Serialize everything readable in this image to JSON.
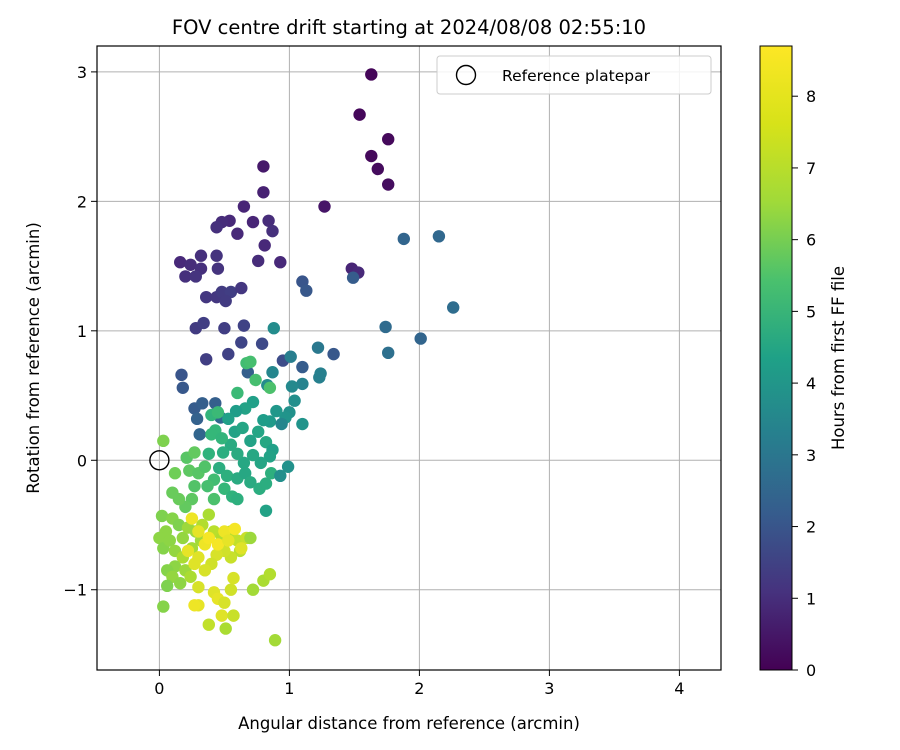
{
  "chart_data": {
    "type": "scatter",
    "title": "FOV centre drift starting at 2024/08/08 02:55:10",
    "xlabel": "Angular distance from reference (arcmin)",
    "ylabel": "Rotation from reference (arcmin)",
    "xlim": [
      -0.48,
      4.32
    ],
    "ylim": [
      -1.62,
      3.2
    ],
    "xticks": [
      0,
      1,
      2,
      3,
      4
    ],
    "yticks": [
      -1,
      0,
      1,
      2,
      3
    ],
    "grid": true,
    "legend": {
      "placement": "top-right",
      "entries": [
        "Reference platepar"
      ]
    },
    "reference_point": {
      "x": 0,
      "y": 0,
      "name": "Reference platepar"
    },
    "colorbar": {
      "label": "Hours from first FF file",
      "range": [
        0,
        8.7
      ],
      "ticks": [
        0,
        1,
        2,
        3,
        4,
        5,
        6,
        7,
        8
      ],
      "colormap": "viridis"
    },
    "points": [
      {
        "x": 1.63,
        "y": 2.98,
        "c": 0.1
      },
      {
        "x": 1.54,
        "y": 2.67,
        "c": 0.15
      },
      {
        "x": 1.76,
        "y": 2.48,
        "c": 0.2
      },
      {
        "x": 1.63,
        "y": 2.35,
        "c": 0.2
      },
      {
        "x": 1.68,
        "y": 2.25,
        "c": 0.25
      },
      {
        "x": 1.76,
        "y": 2.13,
        "c": 0.3
      },
      {
        "x": 1.27,
        "y": 1.96,
        "c": 0.5
      },
      {
        "x": 0.8,
        "y": 2.27,
        "c": 0.6
      },
      {
        "x": 0.8,
        "y": 2.07,
        "c": 0.8
      },
      {
        "x": 0.65,
        "y": 1.96,
        "c": 0.9
      },
      {
        "x": 0.54,
        "y": 1.85,
        "c": 1.0
      },
      {
        "x": 0.48,
        "y": 1.84,
        "c": 1.1
      },
      {
        "x": 0.44,
        "y": 1.8,
        "c": 1.2
      },
      {
        "x": 0.6,
        "y": 1.75,
        "c": 1.0
      },
      {
        "x": 0.72,
        "y": 1.84,
        "c": 0.9
      },
      {
        "x": 0.84,
        "y": 1.85,
        "c": 1.1
      },
      {
        "x": 0.87,
        "y": 1.77,
        "c": 1.2
      },
      {
        "x": 0.81,
        "y": 1.66,
        "c": 1.0
      },
      {
        "x": 0.76,
        "y": 1.54,
        "c": 1.1
      },
      {
        "x": 0.93,
        "y": 1.53,
        "c": 1.0
      },
      {
        "x": 0.16,
        "y": 1.53,
        "c": 1.0
      },
      {
        "x": 0.24,
        "y": 1.51,
        "c": 1.1
      },
      {
        "x": 0.32,
        "y": 1.48,
        "c": 1.2
      },
      {
        "x": 0.32,
        "y": 1.58,
        "c": 1.2
      },
      {
        "x": 0.44,
        "y": 1.58,
        "c": 1.3
      },
      {
        "x": 0.45,
        "y": 1.48,
        "c": 1.3
      },
      {
        "x": 0.2,
        "y": 1.42,
        "c": 1.2
      },
      {
        "x": 0.28,
        "y": 1.42,
        "c": 1.3
      },
      {
        "x": 0.36,
        "y": 1.26,
        "c": 1.4
      },
      {
        "x": 0.44,
        "y": 1.26,
        "c": 1.4
      },
      {
        "x": 0.48,
        "y": 1.3,
        "c": 1.5
      },
      {
        "x": 0.55,
        "y": 1.3,
        "c": 1.6
      },
      {
        "x": 0.51,
        "y": 1.23,
        "c": 1.5
      },
      {
        "x": 0.63,
        "y": 1.33,
        "c": 1.4
      },
      {
        "x": 1.48,
        "y": 1.48,
        "c": 0.9
      },
      {
        "x": 1.53,
        "y": 1.45,
        "c": 1.0
      },
      {
        "x": 0.28,
        "y": 1.02,
        "c": 1.5
      },
      {
        "x": 0.34,
        "y": 1.06,
        "c": 1.6
      },
      {
        "x": 0.5,
        "y": 1.02,
        "c": 1.6
      },
      {
        "x": 0.65,
        "y": 1.04,
        "c": 1.7
      },
      {
        "x": 0.36,
        "y": 0.78,
        "c": 1.6
      },
      {
        "x": 0.53,
        "y": 0.82,
        "c": 1.7
      },
      {
        "x": 0.63,
        "y": 0.91,
        "c": 1.8
      },
      {
        "x": 0.79,
        "y": 0.9,
        "c": 1.9
      },
      {
        "x": 0.95,
        "y": 0.77,
        "c": 2.0
      },
      {
        "x": 1.1,
        "y": 1.38,
        "c": 2.3
      },
      {
        "x": 1.13,
        "y": 1.31,
        "c": 2.4
      },
      {
        "x": 1.49,
        "y": 1.41,
        "c": 2.5
      },
      {
        "x": 1.34,
        "y": 0.82,
        "c": 2.4
      },
      {
        "x": 1.1,
        "y": 0.72,
        "c": 2.5
      },
      {
        "x": 0.68,
        "y": 0.68,
        "c": 2.6
      },
      {
        "x": 1.88,
        "y": 1.71,
        "c": 2.8
      },
      {
        "x": 2.15,
        "y": 1.73,
        "c": 2.9
      },
      {
        "x": 2.26,
        "y": 1.18,
        "c": 3.1
      },
      {
        "x": 2.01,
        "y": 0.94,
        "c": 2.8
      },
      {
        "x": 1.74,
        "y": 1.03,
        "c": 3.0
      },
      {
        "x": 1.76,
        "y": 0.83,
        "c": 3.2
      },
      {
        "x": 0.17,
        "y": 0.66,
        "c": 2.3
      },
      {
        "x": 0.18,
        "y": 0.56,
        "c": 2.4
      },
      {
        "x": 0.27,
        "y": 0.4,
        "c": 2.5
      },
      {
        "x": 0.33,
        "y": 0.44,
        "c": 2.6
      },
      {
        "x": 0.29,
        "y": 0.32,
        "c": 2.7
      },
      {
        "x": 0.31,
        "y": 0.2,
        "c": 2.8
      },
      {
        "x": 0.43,
        "y": 0.44,
        "c": 2.6
      },
      {
        "x": 0.47,
        "y": 0.33,
        "c": 2.9
      },
      {
        "x": 1.22,
        "y": 0.87,
        "c": 3.5
      },
      {
        "x": 1.01,
        "y": 0.8,
        "c": 3.7
      },
      {
        "x": 1.24,
        "y": 0.67,
        "c": 3.8
      },
      {
        "x": 1.23,
        "y": 0.64,
        "c": 3.8
      },
      {
        "x": 1.1,
        "y": 0.59,
        "c": 3.9
      },
      {
        "x": 1.02,
        "y": 0.57,
        "c": 4.1
      },
      {
        "x": 0.87,
        "y": 0.68,
        "c": 4.0
      },
      {
        "x": 0.88,
        "y": 1.02,
        "c": 4.2
      },
      {
        "x": 0.83,
        "y": 0.58,
        "c": 4.2
      },
      {
        "x": 1.04,
        "y": 0.46,
        "c": 4.3
      },
      {
        "x": 1.0,
        "y": 0.37,
        "c": 4.4
      },
      {
        "x": 0.97,
        "y": 0.33,
        "c": 4.5
      },
      {
        "x": 0.9,
        "y": 0.38,
        "c": 4.6
      },
      {
        "x": 0.85,
        "y": 0.3,
        "c": 4.7
      },
      {
        "x": 0.8,
        "y": 0.31,
        "c": 4.8
      },
      {
        "x": 0.72,
        "y": 0.45,
        "c": 4.9
      },
      {
        "x": 0.66,
        "y": 0.4,
        "c": 5.0
      },
      {
        "x": 0.59,
        "y": 0.38,
        "c": 4.8
      },
      {
        "x": 0.53,
        "y": 0.32,
        "c": 4.9
      },
      {
        "x": 0.58,
        "y": 0.22,
        "c": 5.0
      },
      {
        "x": 0.64,
        "y": 0.25,
        "c": 5.1
      },
      {
        "x": 0.7,
        "y": 0.15,
        "c": 5.0
      },
      {
        "x": 0.76,
        "y": 0.22,
        "c": 5.1
      },
      {
        "x": 0.82,
        "y": 0.14,
        "c": 5.2
      },
      {
        "x": 0.87,
        "y": 0.08,
        "c": 4.9
      },
      {
        "x": 0.85,
        "y": 0.03,
        "c": 5.0
      },
      {
        "x": 0.78,
        "y": -0.02,
        "c": 5.1
      },
      {
        "x": 0.72,
        "y": 0.04,
        "c": 5.2
      },
      {
        "x": 0.65,
        "y": -0.02,
        "c": 5.2
      },
      {
        "x": 0.6,
        "y": 0.05,
        "c": 5.3
      },
      {
        "x": 0.55,
        "y": 0.12,
        "c": 5.3
      },
      {
        "x": 0.49,
        "y": 0.06,
        "c": 5.4
      },
      {
        "x": 0.46,
        "y": -0.06,
        "c": 5.4
      },
      {
        "x": 0.52,
        "y": -0.12,
        "c": 5.5
      },
      {
        "x": 0.6,
        "y": -0.14,
        "c": 5.3
      },
      {
        "x": 0.66,
        "y": -0.1,
        "c": 5.2
      },
      {
        "x": 0.7,
        "y": -0.17,
        "c": 5.3
      },
      {
        "x": 0.77,
        "y": -0.22,
        "c": 5.4
      },
      {
        "x": 0.82,
        "y": -0.18,
        "c": 5.4
      },
      {
        "x": 0.86,
        "y": -0.1,
        "c": 5.5
      },
      {
        "x": 0.93,
        "y": -0.12,
        "c": 4.3
      },
      {
        "x": 0.99,
        "y": -0.05,
        "c": 4.4
      },
      {
        "x": 0.82,
        "y": -0.39,
        "c": 5.0
      },
      {
        "x": 0.94,
        "y": 0.28,
        "c": 4.0
      },
      {
        "x": 1.1,
        "y": 0.28,
        "c": 4.5
      },
      {
        "x": 0.38,
        "y": 0.05,
        "c": 5.6
      },
      {
        "x": 0.4,
        "y": 0.35,
        "c": 5.7
      },
      {
        "x": 0.43,
        "y": 0.23,
        "c": 5.8
      },
      {
        "x": 0.45,
        "y": 0.37,
        "c": 5.9
      },
      {
        "x": 0.6,
        "y": 0.52,
        "c": 5.9
      },
      {
        "x": 0.67,
        "y": 0.75,
        "c": 6.0
      },
      {
        "x": 0.7,
        "y": 0.76,
        "c": 6.1
      },
      {
        "x": 0.74,
        "y": 0.62,
        "c": 6.1
      },
      {
        "x": 0.85,
        "y": 0.56,
        "c": 6.2
      },
      {
        "x": 0.4,
        "y": 0.2,
        "c": 5.8
      },
      {
        "x": 0.48,
        "y": 0.17,
        "c": 5.7
      },
      {
        "x": 0.5,
        "y": -0.22,
        "c": 5.8
      },
      {
        "x": 0.56,
        "y": -0.28,
        "c": 5.6
      },
      {
        "x": 0.6,
        "y": -0.3,
        "c": 5.5
      },
      {
        "x": 0.42,
        "y": -0.15,
        "c": 6.0
      },
      {
        "x": 0.37,
        "y": -0.2,
        "c": 6.1
      },
      {
        "x": 0.42,
        "y": -0.3,
        "c": 6.2
      },
      {
        "x": 0.27,
        "y": -0.2,
        "c": 6.3
      },
      {
        "x": 0.21,
        "y": 0.02,
        "c": 6.4
      },
      {
        "x": 0.23,
        "y": -0.08,
        "c": 6.5
      },
      {
        "x": 0.27,
        "y": 0.06,
        "c": 6.6
      },
      {
        "x": 0.3,
        "y": -0.1,
        "c": 6.4
      },
      {
        "x": 0.35,
        "y": -0.05,
        "c": 6.3
      },
      {
        "x": 0.25,
        "y": -0.3,
        "c": 6.5
      },
      {
        "x": 0.2,
        "y": -0.36,
        "c": 6.6
      },
      {
        "x": 0.15,
        "y": -0.3,
        "c": 6.7
      },
      {
        "x": 0.12,
        "y": -0.1,
        "c": 6.8
      },
      {
        "x": 0.1,
        "y": -0.25,
        "c": 6.7
      },
      {
        "x": 0.03,
        "y": 0.15,
        "c": 7.0
      },
      {
        "x": 0.02,
        "y": -0.43,
        "c": 7.0
      },
      {
        "x": 0.1,
        "y": -0.45,
        "c": 7.1
      },
      {
        "x": 0.15,
        "y": -0.5,
        "c": 7.0
      },
      {
        "x": 0.05,
        "y": -0.55,
        "c": 7.2
      },
      {
        "x": 0.0,
        "y": -0.6,
        "c": 7.2
      },
      {
        "x": 0.03,
        "y": -0.68,
        "c": 7.1
      },
      {
        "x": 0.08,
        "y": -0.62,
        "c": 7.2
      },
      {
        "x": 0.12,
        "y": -0.7,
        "c": 7.3
      },
      {
        "x": 0.18,
        "y": -0.6,
        "c": 7.3
      },
      {
        "x": 0.22,
        "y": -0.52,
        "c": 7.4
      },
      {
        "x": 0.28,
        "y": -0.55,
        "c": 7.4
      },
      {
        "x": 0.32,
        "y": -0.62,
        "c": 7.5
      },
      {
        "x": 0.25,
        "y": -0.68,
        "c": 7.5
      },
      {
        "x": 0.18,
        "y": -0.75,
        "c": 7.6
      },
      {
        "x": 0.12,
        "y": -0.82,
        "c": 7.2
      },
      {
        "x": 0.06,
        "y": -0.85,
        "c": 7.1
      },
      {
        "x": 0.1,
        "y": -0.9,
        "c": 7.3
      },
      {
        "x": 0.16,
        "y": -0.95,
        "c": 7.2
      },
      {
        "x": 0.06,
        "y": -0.97,
        "c": 7.0
      },
      {
        "x": 0.03,
        "y": -1.13,
        "c": 7.1
      },
      {
        "x": 0.2,
        "y": -0.85,
        "c": 7.4
      },
      {
        "x": 0.24,
        "y": -0.9,
        "c": 7.6
      },
      {
        "x": 0.33,
        "y": -0.5,
        "c": 7.7
      },
      {
        "x": 0.38,
        "y": -0.42,
        "c": 7.6
      },
      {
        "x": 0.42,
        "y": -0.55,
        "c": 7.8
      },
      {
        "x": 0.48,
        "y": -0.6,
        "c": 7.7
      },
      {
        "x": 0.55,
        "y": -0.55,
        "c": 7.8
      },
      {
        "x": 0.6,
        "y": -0.62,
        "c": 7.9
      },
      {
        "x": 0.67,
        "y": -0.6,
        "c": 8.0
      },
      {
        "x": 0.62,
        "y": -0.7,
        "c": 7.8
      },
      {
        "x": 0.55,
        "y": -0.75,
        "c": 8.0
      },
      {
        "x": 0.5,
        "y": -0.7,
        "c": 8.1
      },
      {
        "x": 0.44,
        "y": -0.73,
        "c": 8.2
      },
      {
        "x": 0.4,
        "y": -0.8,
        "c": 8.1
      },
      {
        "x": 0.35,
        "y": -0.85,
        "c": 8.2
      },
      {
        "x": 0.3,
        "y": -0.75,
        "c": 8.3
      },
      {
        "x": 0.27,
        "y": -0.8,
        "c": 8.3
      },
      {
        "x": 0.22,
        "y": -0.7,
        "c": 8.4
      },
      {
        "x": 0.25,
        "y": -0.45,
        "c": 8.5
      },
      {
        "x": 0.3,
        "y": -0.55,
        "c": 8.4
      },
      {
        "x": 0.35,
        "y": -0.65,
        "c": 8.5
      },
      {
        "x": 0.38,
        "y": -0.6,
        "c": 8.6
      },
      {
        "x": 0.45,
        "y": -0.65,
        "c": 8.6
      },
      {
        "x": 0.5,
        "y": -0.55,
        "c": 8.5
      },
      {
        "x": 0.53,
        "y": -0.62,
        "c": 8.4
      },
      {
        "x": 0.58,
        "y": -0.53,
        "c": 8.6
      },
      {
        "x": 0.63,
        "y": -0.68,
        "c": 8.3
      },
      {
        "x": 0.7,
        "y": -0.6,
        "c": 7.4
      },
      {
        "x": 0.3,
        "y": -0.98,
        "c": 8.2
      },
      {
        "x": 0.42,
        "y": -1.02,
        "c": 8.3
      },
      {
        "x": 0.45,
        "y": -1.07,
        "c": 8.4
      },
      {
        "x": 0.5,
        "y": -1.1,
        "c": 8.2
      },
      {
        "x": 0.55,
        "y": -1.0,
        "c": 8.1
      },
      {
        "x": 0.48,
        "y": -1.2,
        "c": 8.3
      },
      {
        "x": 0.57,
        "y": -1.2,
        "c": 8.0
      },
      {
        "x": 0.51,
        "y": -1.3,
        "c": 7.6
      },
      {
        "x": 0.38,
        "y": -1.27,
        "c": 7.9
      },
      {
        "x": 0.3,
        "y": -1.12,
        "c": 8.4
      },
      {
        "x": 0.27,
        "y": -1.12,
        "c": 8.5
      },
      {
        "x": 0.57,
        "y": -0.91,
        "c": 8.2
      },
      {
        "x": 0.72,
        "y": -1.0,
        "c": 7.5
      },
      {
        "x": 0.8,
        "y": -0.93,
        "c": 7.6
      },
      {
        "x": 0.85,
        "y": -0.88,
        "c": 7.7
      },
      {
        "x": 0.89,
        "y": -1.39,
        "c": 7.5
      }
    ]
  }
}
